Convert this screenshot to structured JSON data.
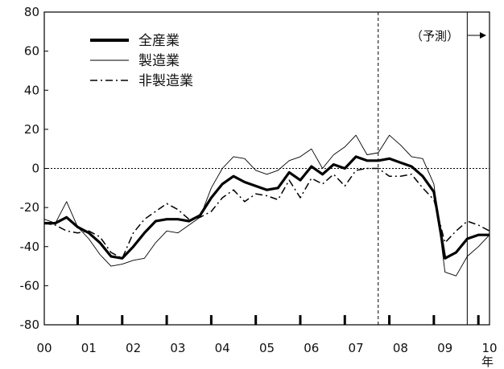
{
  "chart_data": {
    "type": "line",
    "x_unit": "年",
    "forecast_label": "（予測）",
    "ylim": [
      -80,
      80
    ],
    "yticks": [
      80,
      60,
      40,
      20,
      0,
      -20,
      -40,
      -60,
      -80
    ],
    "xlim": [
      2000.0,
      2010.0
    ],
    "xticks": [
      {
        "label": "00",
        "x": 2000.0
      },
      {
        "label": "01",
        "x": 2001.0
      },
      {
        "label": "02",
        "x": 2002.0
      },
      {
        "label": "03",
        "x": 2003.0
      },
      {
        "label": "04",
        "x": 2004.0
      },
      {
        "label": "05",
        "x": 2005.0
      },
      {
        "label": "06",
        "x": 2006.0
      },
      {
        "label": "07",
        "x": 2007.0
      },
      {
        "label": "08",
        "x": 2008.0
      },
      {
        "label": "09",
        "x": 2009.0
      },
      {
        "label": "10",
        "x": 2010.0
      }
    ],
    "x_markers": [
      2000.75,
      2001.75,
      2002.75,
      2003.75,
      2004.75,
      2005.75,
      2006.75,
      2007.75,
      2008.75,
      2009.75
    ],
    "vlines": [
      {
        "x": 2007.5,
        "style": "dashed"
      },
      {
        "x": 2009.5,
        "style": "solid"
      }
    ],
    "grid": false,
    "legend_position": "top-left",
    "series": [
      {
        "name": "全産業",
        "style": "thick-solid",
        "points": [
          [
            2000.0,
            -28
          ],
          [
            2000.25,
            -28
          ],
          [
            2000.5,
            -25
          ],
          [
            2000.75,
            -30
          ],
          [
            2001.0,
            -33
          ],
          [
            2001.25,
            -38
          ],
          [
            2001.5,
            -45
          ],
          [
            2001.75,
            -46
          ],
          [
            2002.0,
            -40
          ],
          [
            2002.25,
            -33
          ],
          [
            2002.5,
            -27
          ],
          [
            2002.75,
            -26
          ],
          [
            2003.0,
            -26
          ],
          [
            2003.25,
            -27
          ],
          [
            2003.5,
            -24
          ],
          [
            2003.75,
            -15
          ],
          [
            2004.0,
            -8
          ],
          [
            2004.25,
            -4
          ],
          [
            2004.5,
            -7
          ],
          [
            2004.75,
            -9
          ],
          [
            2005.0,
            -11
          ],
          [
            2005.25,
            -10
          ],
          [
            2005.5,
            -2
          ],
          [
            2005.75,
            -6
          ],
          [
            2006.0,
            1
          ],
          [
            2006.25,
            -3
          ],
          [
            2006.5,
            2
          ],
          [
            2006.75,
            0
          ],
          [
            2007.0,
            6
          ],
          [
            2007.25,
            4
          ],
          [
            2007.5,
            4
          ],
          [
            2007.75,
            5
          ],
          [
            2008.0,
            3
          ],
          [
            2008.25,
            1
          ],
          [
            2008.5,
            -4
          ],
          [
            2008.75,
            -12
          ],
          [
            2009.0,
            -46
          ],
          [
            2009.25,
            -43
          ],
          [
            2009.5,
            -36
          ],
          [
            2009.75,
            -34
          ],
          [
            2010.0,
            -34
          ]
        ]
      },
      {
        "name": "製造業",
        "style": "thin-solid",
        "points": [
          [
            2000.0,
            -26
          ],
          [
            2000.25,
            -28
          ],
          [
            2000.5,
            -17
          ],
          [
            2000.75,
            -30
          ],
          [
            2001.0,
            -36
          ],
          [
            2001.25,
            -44
          ],
          [
            2001.5,
            -50
          ],
          [
            2001.75,
            -49
          ],
          [
            2002.0,
            -47
          ],
          [
            2002.25,
            -46
          ],
          [
            2002.5,
            -38
          ],
          [
            2002.75,
            -32
          ],
          [
            2003.0,
            -33
          ],
          [
            2003.25,
            -29
          ],
          [
            2003.5,
            -25
          ],
          [
            2003.75,
            -10
          ],
          [
            2004.0,
            0
          ],
          [
            2004.25,
            6
          ],
          [
            2004.5,
            5
          ],
          [
            2004.75,
            -1
          ],
          [
            2005.0,
            -3
          ],
          [
            2005.25,
            -1
          ],
          [
            2005.5,
            4
          ],
          [
            2005.75,
            6
          ],
          [
            2006.0,
            10
          ],
          [
            2006.25,
            0
          ],
          [
            2006.5,
            7
          ],
          [
            2006.75,
            11
          ],
          [
            2007.0,
            17
          ],
          [
            2007.25,
            7
          ],
          [
            2007.5,
            8
          ],
          [
            2007.75,
            17
          ],
          [
            2008.0,
            12
          ],
          [
            2008.25,
            6
          ],
          [
            2008.5,
            5
          ],
          [
            2008.75,
            -8
          ],
          [
            2009.0,
            -53
          ],
          [
            2009.25,
            -55
          ],
          [
            2009.5,
            -45
          ],
          [
            2009.75,
            -40
          ],
          [
            2010.0,
            -34
          ]
        ]
      },
      {
        "name": "非製造業",
        "style": "dash-dot",
        "points": [
          [
            2000.0,
            -28
          ],
          [
            2000.25,
            -29
          ],
          [
            2000.5,
            -32
          ],
          [
            2000.75,
            -33
          ],
          [
            2001.0,
            -32
          ],
          [
            2001.25,
            -35
          ],
          [
            2001.5,
            -43
          ],
          [
            2001.75,
            -46
          ],
          [
            2002.0,
            -33
          ],
          [
            2002.25,
            -26
          ],
          [
            2002.5,
            -22
          ],
          [
            2002.75,
            -18
          ],
          [
            2003.0,
            -21
          ],
          [
            2003.25,
            -26
          ],
          [
            2003.5,
            -25
          ],
          [
            2003.75,
            -22
          ],
          [
            2004.0,
            -15
          ],
          [
            2004.25,
            -11
          ],
          [
            2004.5,
            -17
          ],
          [
            2004.75,
            -13
          ],
          [
            2005.0,
            -14
          ],
          [
            2005.25,
            -16
          ],
          [
            2005.5,
            -6
          ],
          [
            2005.75,
            -15
          ],
          [
            2006.0,
            -5
          ],
          [
            2006.25,
            -8
          ],
          [
            2006.5,
            -3
          ],
          [
            2006.75,
            -9
          ],
          [
            2007.0,
            -1
          ],
          [
            2007.25,
            0
          ],
          [
            2007.5,
            0
          ],
          [
            2007.75,
            -4
          ],
          [
            2008.0,
            -4
          ],
          [
            2008.25,
            -3
          ],
          [
            2008.5,
            -10
          ],
          [
            2008.75,
            -16
          ],
          [
            2009.0,
            -38
          ],
          [
            2009.25,
            -32
          ],
          [
            2009.5,
            -27
          ],
          [
            2009.75,
            -29
          ],
          [
            2010.0,
            -32
          ]
        ]
      }
    ]
  }
}
